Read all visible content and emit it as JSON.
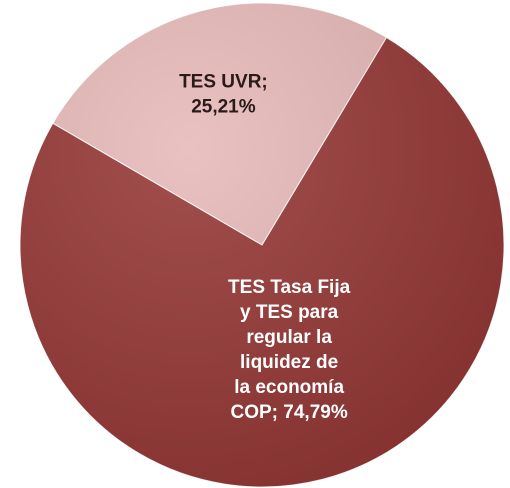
{
  "chart_data": {
    "type": "pie",
    "values": [
      25.21,
      74.79
    ],
    "value_labels": [
      "TES UVR; 25,21%",
      "TES Tasa Fija y TES para regular la liquidez de la economía COP; 74,79%"
    ],
    "colors": [
      "#e6b9b8",
      "#953735"
    ],
    "label_colors": [
      "#2b1a1a",
      "#ffffff"
    ]
  }
}
